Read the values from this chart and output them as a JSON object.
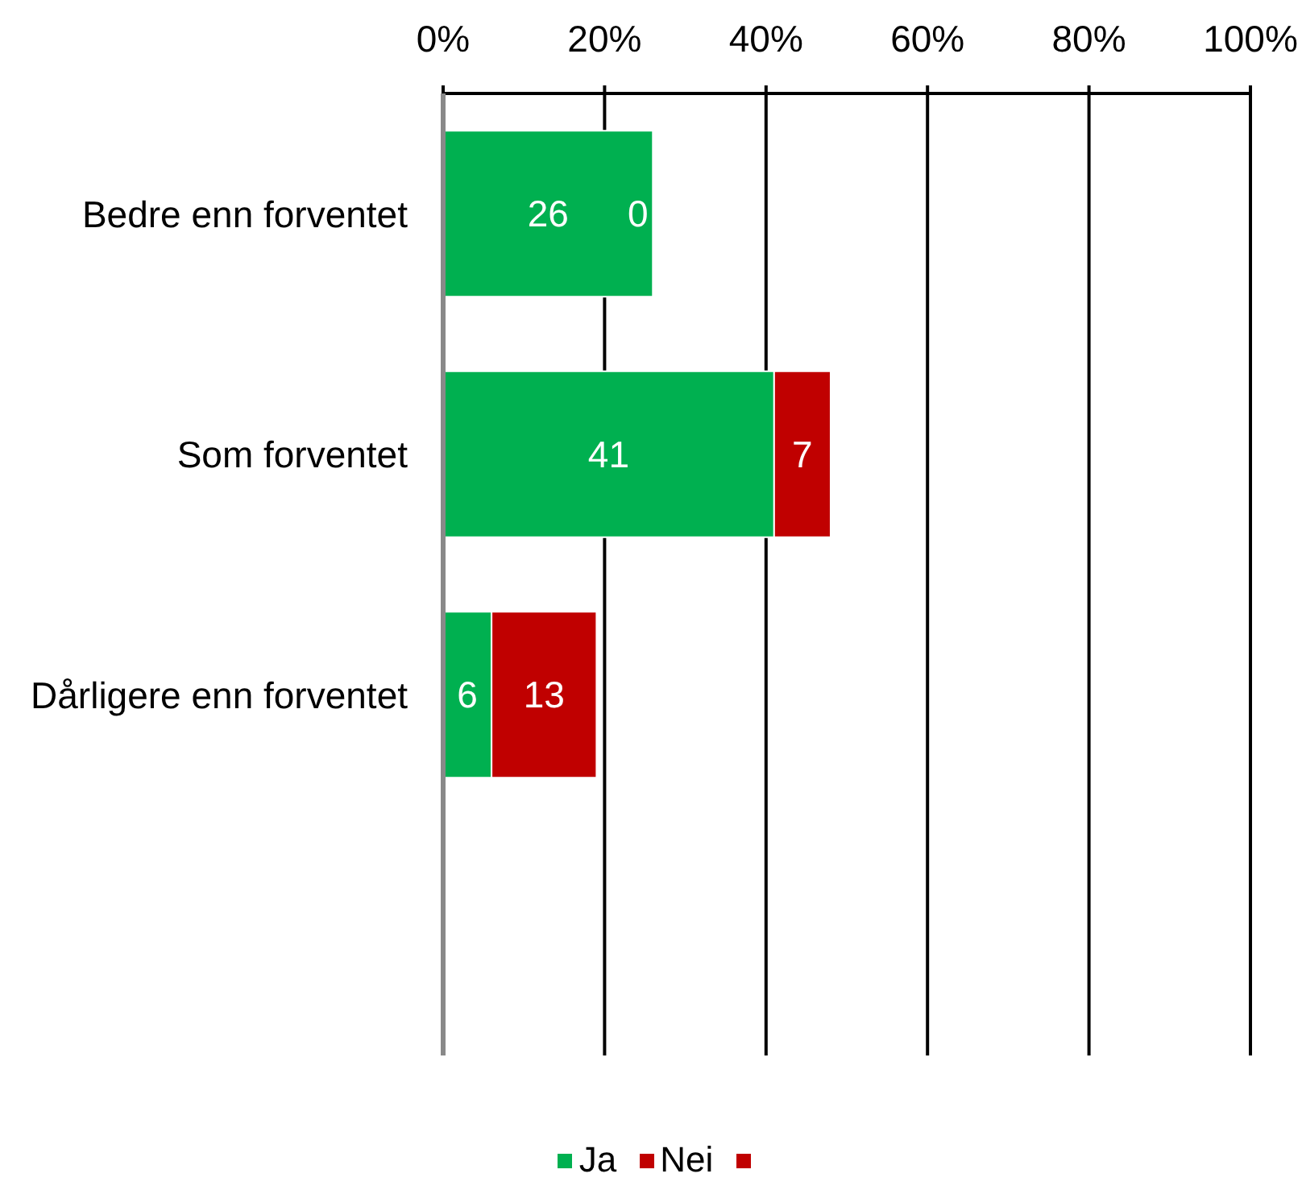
{
  "chart_data": {
    "type": "bar",
    "orientation": "horizontal",
    "stacked": true,
    "categories": [
      "Bedre enn forventet",
      "Som forventet",
      "Dårligere enn forventet",
      null
    ],
    "series": [
      {
        "name": "Ja",
        "color": "#00b050",
        "values": [
          26,
          41,
          6,
          null
        ]
      },
      {
        "name": "Nei",
        "color": "#c00000",
        "values": [
          0,
          7,
          13,
          null
        ]
      },
      {
        "color": "#c00000",
        "values": [
          null,
          null,
          null,
          null
        ]
      }
    ],
    "xlim": [
      0,
      100
    ],
    "xticks": [
      {
        "value": 0,
        "label": "0%"
      },
      {
        "value": 20,
        "label": "20%"
      },
      {
        "value": 40,
        "label": "40%"
      },
      {
        "value": 60,
        "label": "60%"
      },
      {
        "value": 80,
        "label": "80%"
      },
      {
        "value": 100,
        "label": "100%"
      }
    ],
    "grid": "x",
    "legend": "bottom",
    "data_labels": true
  }
}
